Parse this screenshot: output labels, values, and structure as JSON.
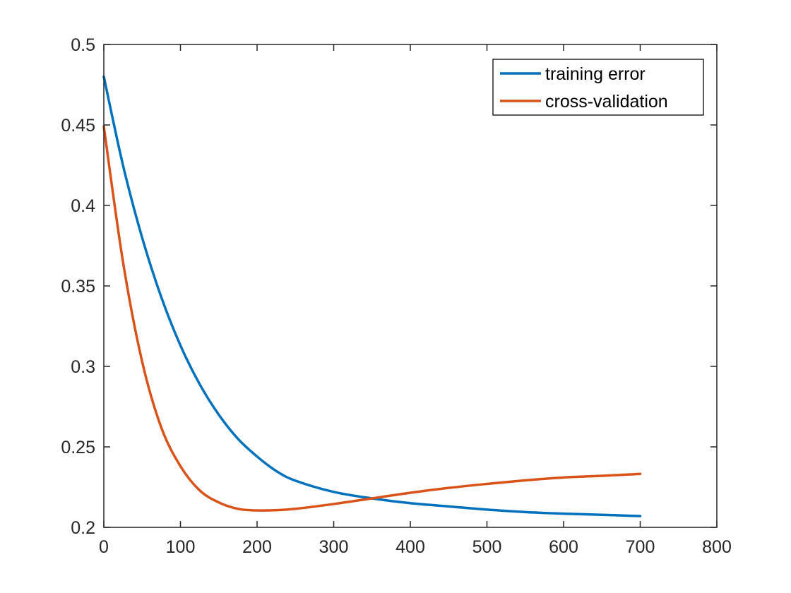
{
  "chart_data": {
    "type": "line",
    "title": "",
    "xlabel": "",
    "ylabel": "",
    "xlim": [
      0,
      800
    ],
    "ylim": [
      0.2,
      0.5
    ],
    "x_ticks": [
      0,
      100,
      200,
      300,
      400,
      500,
      600,
      700,
      800
    ],
    "x_tick_labels": [
      "0",
      "100",
      "200",
      "300",
      "400",
      "500",
      "600",
      "700",
      "800"
    ],
    "y_ticks": [
      0.2,
      0.25,
      0.3,
      0.35,
      0.4,
      0.45,
      0.5
    ],
    "y_tick_labels": [
      "0.2",
      "0.25",
      "0.3",
      "0.35",
      "0.4",
      "0.45",
      "0.5"
    ],
    "grid": false,
    "box": true,
    "legend": {
      "position": "top-right"
    },
    "x": [
      0,
      25,
      50,
      75,
      100,
      125,
      150,
      175,
      200,
      225,
      250,
      300,
      350,
      400,
      450,
      500,
      550,
      600,
      650,
      700
    ],
    "series": [
      {
        "name": "training error",
        "color": "#0072BD",
        "values": [
          0.48,
          0.425,
          0.38,
          0.343,
          0.313,
          0.289,
          0.27,
          0.255,
          0.244,
          0.235,
          0.229,
          0.222,
          0.218,
          0.215,
          0.213,
          0.211,
          0.2095,
          0.2085,
          0.2078,
          0.207
        ]
      },
      {
        "name": "cross-validation",
        "color": "#D95319",
        "values": [
          0.449,
          0.365,
          0.303,
          0.262,
          0.238,
          0.223,
          0.2155,
          0.2115,
          0.2105,
          0.2107,
          0.2115,
          0.2145,
          0.218,
          0.2215,
          0.2245,
          0.227,
          0.2292,
          0.231,
          0.232,
          0.2332
        ]
      }
    ]
  }
}
